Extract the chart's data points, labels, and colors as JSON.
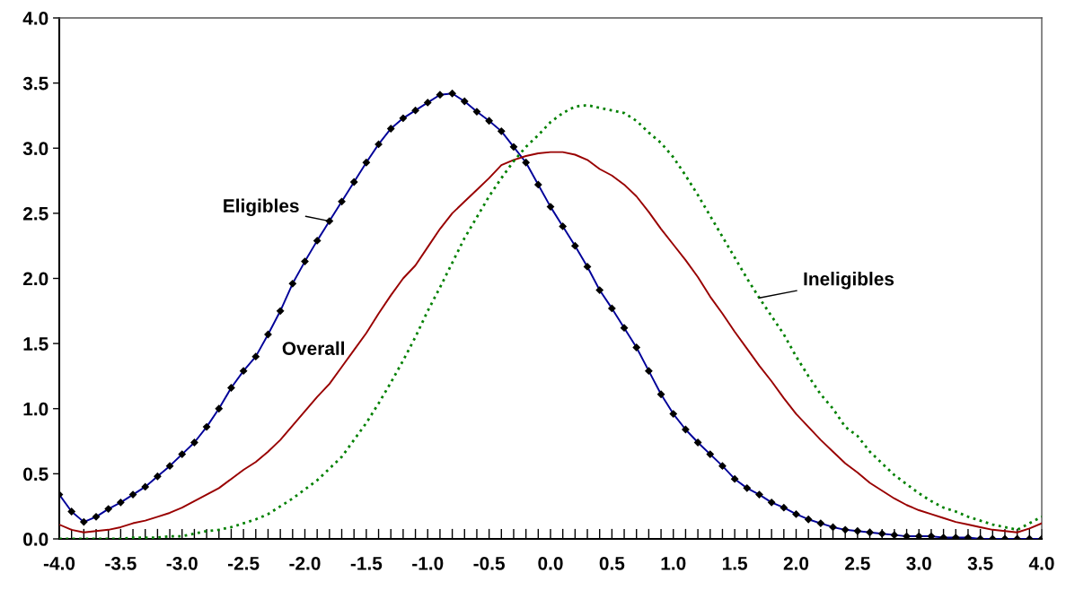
{
  "chart_data": {
    "type": "line",
    "x": [
      -4.0,
      -3.9,
      -3.8,
      -3.7,
      -3.6,
      -3.5,
      -3.4,
      -3.3,
      -3.2,
      -3.1,
      -3.0,
      -2.9,
      -2.8,
      -2.7,
      -2.6,
      -2.5,
      -2.4,
      -2.3,
      -2.2,
      -2.1,
      -2.0,
      -1.9,
      -1.8,
      -1.7,
      -1.6,
      -1.5,
      -1.4,
      -1.3,
      -1.2,
      -1.1,
      -1.0,
      -0.9,
      -0.8,
      -0.7,
      -0.6,
      -0.5,
      -0.4,
      -0.3,
      -0.2,
      -0.1,
      0.0,
      0.1,
      0.2,
      0.3,
      0.4,
      0.5,
      0.6,
      0.7,
      0.8,
      0.9,
      1.0,
      1.1,
      1.2,
      1.3,
      1.4,
      1.5,
      1.6,
      1.7,
      1.8,
      1.9,
      2.0,
      2.1,
      2.2,
      2.3,
      2.4,
      2.5,
      2.6,
      2.7,
      2.8,
      2.9,
      3.0,
      3.1,
      3.2,
      3.3,
      3.4,
      3.5,
      3.6,
      3.7,
      3.8,
      3.9,
      4.0
    ],
    "series": [
      {
        "name": "Eligibles",
        "color": "#000099",
        "marker": "diamond",
        "line_style": "solid",
        "values": [
          0.34,
          0.21,
          0.13,
          0.17,
          0.23,
          0.28,
          0.34,
          0.4,
          0.48,
          0.56,
          0.65,
          0.74,
          0.86,
          1.0,
          1.16,
          1.29,
          1.4,
          1.57,
          1.75,
          1.96,
          2.13,
          2.29,
          2.44,
          2.59,
          2.74,
          2.89,
          3.03,
          3.15,
          3.23,
          3.29,
          3.35,
          3.41,
          3.42,
          3.36,
          3.28,
          3.21,
          3.13,
          3.01,
          2.89,
          2.72,
          2.55,
          2.4,
          2.25,
          2.09,
          1.91,
          1.77,
          1.62,
          1.47,
          1.29,
          1.11,
          0.96,
          0.84,
          0.74,
          0.65,
          0.56,
          0.46,
          0.39,
          0.34,
          0.28,
          0.24,
          0.19,
          0.15,
          0.12,
          0.09,
          0.07,
          0.06,
          0.05,
          0.04,
          0.03,
          0.02,
          0.02,
          0.02,
          0.01,
          0.01,
          0.01,
          0.0,
          0.0,
          0.0,
          0.0,
          0.0,
          0.0
        ]
      },
      {
        "name": "Overall",
        "color": "#990000",
        "marker": "none",
        "line_style": "solid",
        "values": [
          0.11,
          0.07,
          0.05,
          0.06,
          0.07,
          0.09,
          0.12,
          0.14,
          0.17,
          0.2,
          0.24,
          0.29,
          0.34,
          0.39,
          0.46,
          0.53,
          0.59,
          0.67,
          0.76,
          0.87,
          0.98,
          1.09,
          1.19,
          1.32,
          1.45,
          1.58,
          1.73,
          1.87,
          2.0,
          2.1,
          2.24,
          2.38,
          2.5,
          2.59,
          2.68,
          2.77,
          2.87,
          2.91,
          2.94,
          2.96,
          2.97,
          2.97,
          2.95,
          2.91,
          2.84,
          2.79,
          2.72,
          2.63,
          2.51,
          2.38,
          2.26,
          2.14,
          2.01,
          1.86,
          1.73,
          1.59,
          1.46,
          1.33,
          1.21,
          1.08,
          0.96,
          0.86,
          0.76,
          0.67,
          0.58,
          0.51,
          0.43,
          0.37,
          0.31,
          0.26,
          0.22,
          0.19,
          0.16,
          0.13,
          0.11,
          0.09,
          0.07,
          0.06,
          0.05,
          0.08,
          0.12
        ]
      },
      {
        "name": "Ineligibles",
        "color": "#008000",
        "marker": "none",
        "line_style": "dotted",
        "values": [
          0.0,
          0.0,
          0.0,
          0.0,
          0.0,
          0.0,
          0.01,
          0.01,
          0.01,
          0.02,
          0.02,
          0.04,
          0.06,
          0.07,
          0.09,
          0.12,
          0.15,
          0.19,
          0.25,
          0.31,
          0.38,
          0.45,
          0.54,
          0.63,
          0.76,
          0.89,
          1.04,
          1.2,
          1.37,
          1.55,
          1.75,
          1.93,
          2.12,
          2.31,
          2.47,
          2.63,
          2.77,
          2.9,
          3.01,
          3.1,
          3.2,
          3.27,
          3.32,
          3.33,
          3.31,
          3.29,
          3.27,
          3.21,
          3.12,
          3.04,
          2.93,
          2.79,
          2.64,
          2.48,
          2.32,
          2.16,
          2.0,
          1.85,
          1.71,
          1.57,
          1.4,
          1.25,
          1.11,
          1.0,
          0.86,
          0.79,
          0.67,
          0.58,
          0.49,
          0.42,
          0.35,
          0.29,
          0.24,
          0.21,
          0.17,
          0.14,
          0.11,
          0.09,
          0.07,
          0.12,
          0.17
        ]
      }
    ],
    "xlim": [
      -4.0,
      4.0
    ],
    "ylim": [
      0.0,
      4.0
    ],
    "xticks": [
      {
        "value": -4.0,
        "label": "-4.0"
      },
      {
        "value": -3.9,
        "label": null
      },
      {
        "value": -3.8,
        "label": null
      },
      {
        "value": -3.7,
        "label": null
      },
      {
        "value": -3.6,
        "label": null
      },
      {
        "value": -3.5,
        "label": "-3.5"
      },
      {
        "value": -3.4,
        "label": null
      },
      {
        "value": -3.3,
        "label": null
      },
      {
        "value": -3.2,
        "label": null
      },
      {
        "value": -3.1,
        "label": null
      },
      {
        "value": -3.0,
        "label": "-3.0"
      },
      {
        "value": -2.9,
        "label": null
      },
      {
        "value": -2.8,
        "label": null
      },
      {
        "value": -2.7,
        "label": null
      },
      {
        "value": -2.6,
        "label": null
      },
      {
        "value": -2.5,
        "label": "-2.5"
      },
      {
        "value": -2.4,
        "label": null
      },
      {
        "value": -2.3,
        "label": null
      },
      {
        "value": -2.2,
        "label": null
      },
      {
        "value": -2.1,
        "label": null
      },
      {
        "value": -2.0,
        "label": "-2.0"
      },
      {
        "value": -1.9,
        "label": null
      },
      {
        "value": -1.8,
        "label": null
      },
      {
        "value": -1.7,
        "label": null
      },
      {
        "value": -1.6,
        "label": null
      },
      {
        "value": -1.5,
        "label": "-1.5"
      },
      {
        "value": -1.4,
        "label": null
      },
      {
        "value": -1.3,
        "label": null
      },
      {
        "value": -1.2,
        "label": null
      },
      {
        "value": -1.1,
        "label": null
      },
      {
        "value": -1.0,
        "label": "-1.0"
      },
      {
        "value": -0.9,
        "label": null
      },
      {
        "value": -0.8,
        "label": null
      },
      {
        "value": -0.7,
        "label": null
      },
      {
        "value": -0.6,
        "label": null
      },
      {
        "value": -0.5,
        "label": "-0.5"
      },
      {
        "value": -0.4,
        "label": null
      },
      {
        "value": -0.3,
        "label": null
      },
      {
        "value": -0.2,
        "label": null
      },
      {
        "value": -0.1,
        "label": null
      },
      {
        "value": 0.0,
        "label": "0.0"
      },
      {
        "value": 0.1,
        "label": null
      },
      {
        "value": 0.2,
        "label": null
      },
      {
        "value": 0.3,
        "label": null
      },
      {
        "value": 0.4,
        "label": null
      },
      {
        "value": 0.5,
        "label": "0.5"
      },
      {
        "value": 0.6,
        "label": null
      },
      {
        "value": 0.7,
        "label": null
      },
      {
        "value": 0.8,
        "label": null
      },
      {
        "value": 0.9,
        "label": null
      },
      {
        "value": 1.0,
        "label": "1.0"
      },
      {
        "value": 1.1,
        "label": null
      },
      {
        "value": 1.2,
        "label": null
      },
      {
        "value": 1.3,
        "label": null
      },
      {
        "value": 1.4,
        "label": null
      },
      {
        "value": 1.5,
        "label": "1.5"
      },
      {
        "value": 1.6,
        "label": null
      },
      {
        "value": 1.7,
        "label": null
      },
      {
        "value": 1.8,
        "label": null
      },
      {
        "value": 1.9,
        "label": null
      },
      {
        "value": 2.0,
        "label": "2.0"
      },
      {
        "value": 2.1,
        "label": null
      },
      {
        "value": 2.2,
        "label": null
      },
      {
        "value": 2.3,
        "label": null
      },
      {
        "value": 2.4,
        "label": null
      },
      {
        "value": 2.5,
        "label": "2.5"
      },
      {
        "value": 2.6,
        "label": null
      },
      {
        "value": 2.7,
        "label": null
      },
      {
        "value": 2.8,
        "label": null
      },
      {
        "value": 2.9,
        "label": null
      },
      {
        "value": 3.0,
        "label": "3.0"
      },
      {
        "value": 3.1,
        "label": null
      },
      {
        "value": 3.2,
        "label": null
      },
      {
        "value": 3.3,
        "label": null
      },
      {
        "value": 3.4,
        "label": null
      },
      {
        "value": 3.5,
        "label": "3.5"
      },
      {
        "value": 3.6,
        "label": null
      },
      {
        "value": 3.7,
        "label": null
      },
      {
        "value": 3.8,
        "label": null
      },
      {
        "value": 3.9,
        "label": null
      },
      {
        "value": 4.0,
        "label": "4.0"
      }
    ],
    "yticks": [
      {
        "value": 0.0,
        "label": "0.0"
      },
      {
        "value": 0.5,
        "label": "0.5"
      },
      {
        "value": 1.0,
        "label": "1.0"
      },
      {
        "value": 1.5,
        "label": "1.5"
      },
      {
        "value": 2.0,
        "label": "2.0"
      },
      {
        "value": 2.5,
        "label": "2.5"
      },
      {
        "value": 3.0,
        "label": "3.0"
      },
      {
        "value": 3.5,
        "label": "3.5"
      },
      {
        "value": 4.0,
        "label": "4.0"
      }
    ],
    "grid": false
  }
}
